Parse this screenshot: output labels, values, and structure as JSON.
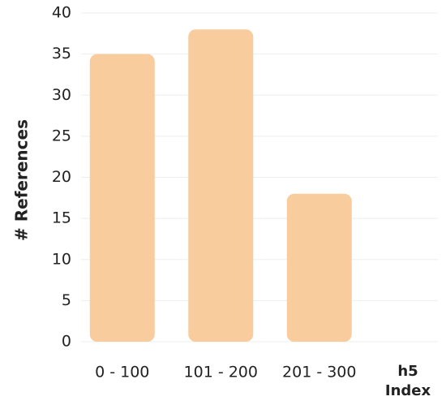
{
  "chart_data": {
    "type": "bar",
    "ylabel": "# References",
    "xlabel": "h5 Index",
    "categories": [
      "0 - 100",
      "101 - 200",
      "201 - 300"
    ],
    "values": [
      35,
      38,
      18
    ],
    "color": "#f9cc9d",
    "ylim": [
      0,
      40
    ],
    "yticks": [
      0,
      5,
      10,
      15,
      20,
      25,
      30,
      35,
      40
    ],
    "grid": true
  }
}
